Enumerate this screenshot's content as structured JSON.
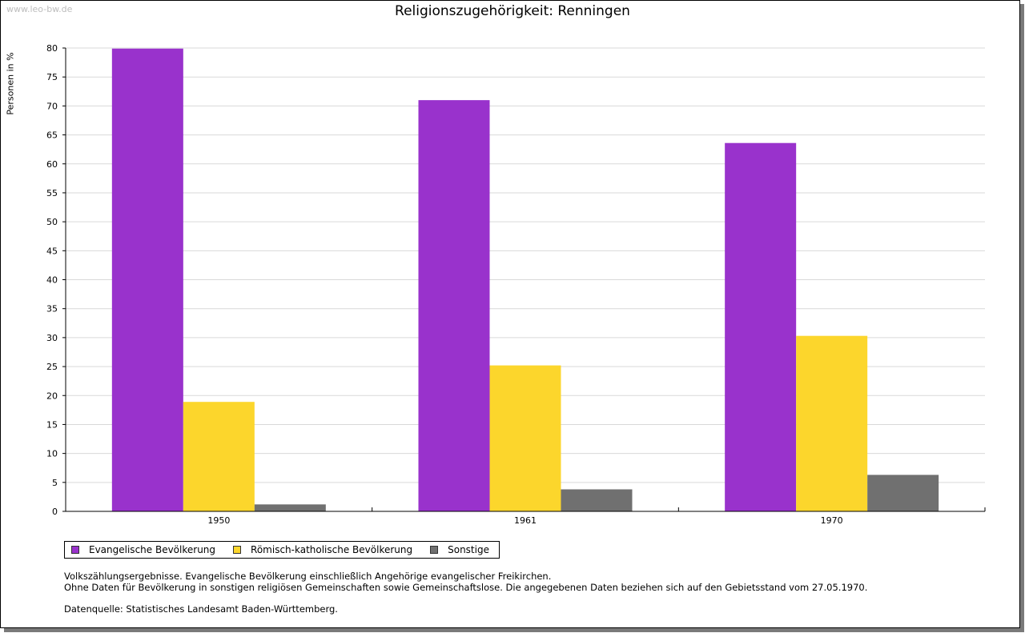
{
  "watermark": "www.leo-bw.de",
  "notes": {
    "line1": "Volkszählungsergebnisse. Evangelische Bevölkerung einschließlich Angehörige evangelischer Freikirchen.",
    "line2": "Ohne Daten für Bevölkerung in sonstigen religiösen Gemeinschaften sowie Gemeinschaftslose. Die angegebenen Daten beziehen sich auf den Gebietsstand vom 27.05.1970.",
    "source": "Datenquelle: Statistisches Landesamt Baden-Württemberg."
  },
  "chart_data": {
    "type": "bar",
    "title": "Religionszugehörigkeit: Renningen",
    "xlabel": "",
    "ylabel": "Personen in %",
    "categories": [
      "1950",
      "1961",
      "1970"
    ],
    "series": [
      {
        "name": "Evangelische Bevölkerung",
        "color": "#9932cc",
        "values": [
          79.9,
          71.0,
          63.6
        ]
      },
      {
        "name": "Römisch-katholische Bevölkerung",
        "color": "#fcd62c",
        "values": [
          18.9,
          25.2,
          30.3
        ]
      },
      {
        "name": "Sonstige",
        "color": "#707070",
        "values": [
          1.2,
          3.8,
          6.3
        ]
      }
    ],
    "ylim": [
      0,
      80
    ],
    "yticks": [
      0,
      5,
      10,
      15,
      20,
      25,
      30,
      35,
      40,
      45,
      50,
      55,
      60,
      65,
      70,
      75,
      80
    ],
    "grid": true,
    "legend_position": "bottom"
  }
}
